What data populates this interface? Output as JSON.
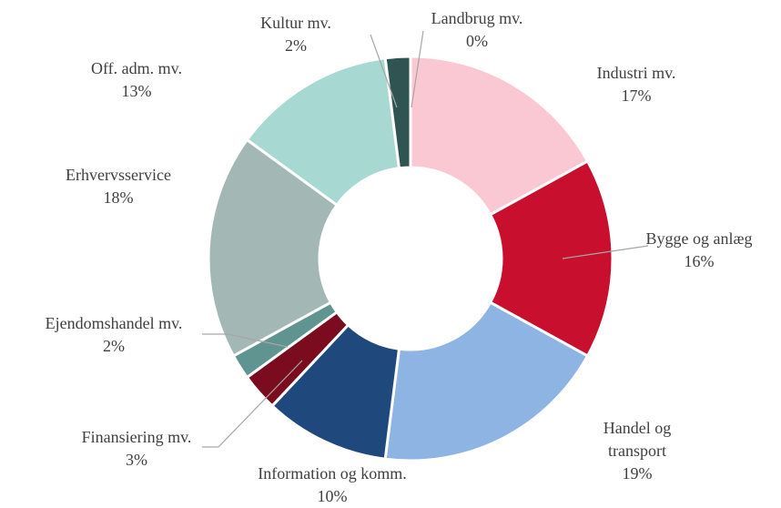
{
  "chart_data": {
    "type": "donut",
    "categories": [
      "Landbrug mv.",
      "Industri mv.",
      "Bygge og anlæg",
      "Handel og transport",
      "Information og komm.",
      "Finansiering mv.",
      "Ejendomshandel mv.",
      "Erhvervsservice",
      "Off. adm. mv.",
      "Kultur mv."
    ],
    "values": [
      0,
      17,
      16,
      19,
      10,
      3,
      2,
      18,
      13,
      2
    ],
    "value_labels": [
      "0%",
      "17%",
      "16%",
      "19%",
      "10%",
      "3%",
      "2%",
      "18%",
      "13%",
      "2%"
    ],
    "colors": [
      "#3d6b3a",
      "#f9c8d2",
      "#c8102e",
      "#8db4e2",
      "#1f497d",
      "#7b0c1f",
      "#5f9490",
      "#a3b8b4",
      "#a8d8d2",
      "#2f5452"
    ]
  }
}
